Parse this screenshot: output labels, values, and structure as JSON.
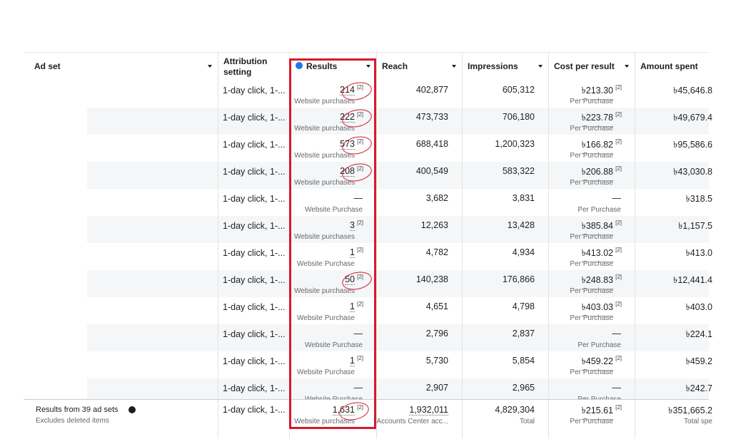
{
  "table": {
    "columns": [
      "Ad set",
      "Attribution setting",
      "Results",
      "Reach",
      "Impressions",
      "Cost per result",
      "Amount spent"
    ],
    "footnote": "[2]",
    "rows": [
      {
        "attribution": "1-day click, 1-...",
        "results": "214",
        "results_unit": "Website purchases",
        "reach": "402,877",
        "impressions": "605,312",
        "cost": "৳213.30",
        "cost_unit": "Per Purchase",
        "spent": "৳45,646.8",
        "circled": true
      },
      {
        "attribution": "1-day click, 1-...",
        "results": "222",
        "results_unit": "Website purchases",
        "reach": "473,733",
        "impressions": "706,180",
        "cost": "৳223.78",
        "cost_unit": "Per Purchase",
        "spent": "৳49,679.4",
        "circled": true
      },
      {
        "attribution": "1-day click, 1-...",
        "results": "573",
        "results_unit": "Website purchases",
        "reach": "688,418",
        "impressions": "1,200,323",
        "cost": "৳166.82",
        "cost_unit": "Per Purchase",
        "spent": "৳95,586.6",
        "circled": true
      },
      {
        "attribution": "1-day click, 1-...",
        "results": "208",
        "results_unit": "Website purchases",
        "reach": "400,549",
        "impressions": "583,322",
        "cost": "৳206.88",
        "cost_unit": "Per Purchase",
        "spent": "৳43,030.8",
        "circled": true
      },
      {
        "attribution": "1-day click, 1-...",
        "results": "—",
        "results_unit": "Website Purchase",
        "reach": "3,682",
        "impressions": "3,831",
        "cost": "—",
        "cost_unit": "Per Purchase",
        "spent": "৳318.5"
      },
      {
        "attribution": "1-day click, 1-...",
        "results": "3",
        "results_unit": "Website purchases",
        "reach": "12,263",
        "impressions": "13,428",
        "cost": "৳385.84",
        "cost_unit": "Per Purchase",
        "spent": "৳1,157.5"
      },
      {
        "attribution": "1-day click, 1-...",
        "results": "1",
        "results_unit": "Website Purchase",
        "reach": "4,782",
        "impressions": "4,934",
        "cost": "৳413.02",
        "cost_unit": "Per Purchase",
        "spent": "৳413.0"
      },
      {
        "attribution": "1-day click, 1-...",
        "results": "50",
        "results_unit": "Website purchases",
        "reach": "140,238",
        "impressions": "176,866",
        "cost": "৳248.83",
        "cost_unit": "Per Purchase",
        "spent": "৳12,441.4",
        "circled": true
      },
      {
        "attribution": "1-day click, 1-...",
        "results": "1",
        "results_unit": "Website Purchase",
        "reach": "4,651",
        "impressions": "4,798",
        "cost": "৳403.03",
        "cost_unit": "Per Purchase",
        "spent": "৳403.0"
      },
      {
        "attribution": "1-day click, 1-...",
        "results": "—",
        "results_unit": "Website Purchase",
        "reach": "2,796",
        "impressions": "2,837",
        "cost": "—",
        "cost_unit": "Per Purchase",
        "spent": "৳224.1"
      },
      {
        "attribution": "1-day click, 1-...",
        "results": "1",
        "results_unit": "Website Purchase",
        "reach": "5,730",
        "impressions": "5,854",
        "cost": "৳459.22",
        "cost_unit": "Per Purchase",
        "spent": "৳459.2"
      },
      {
        "attribution": "1-day click, 1-...",
        "results": "—",
        "results_unit": "Website Purchase",
        "reach": "2,907",
        "impressions": "2,965",
        "cost": "—",
        "cost_unit": "Per Purchase",
        "spent": "৳242.7"
      }
    ],
    "footer": {
      "label": "Results from 39 ad sets",
      "sublabel": "Excludes deleted items",
      "attribution": "1-day click, 1-...",
      "results": "1,631",
      "results_unit": "Website purchases",
      "reach": "1,932,011",
      "reach_unit": "Accounts Center acc...",
      "impressions": "4,829,304",
      "impressions_unit": "Total",
      "cost": "৳215.61",
      "cost_unit": "Per Purchase",
      "spent": "৳351,665.2",
      "spent_unit": "Total spe",
      "circled": true
    }
  }
}
